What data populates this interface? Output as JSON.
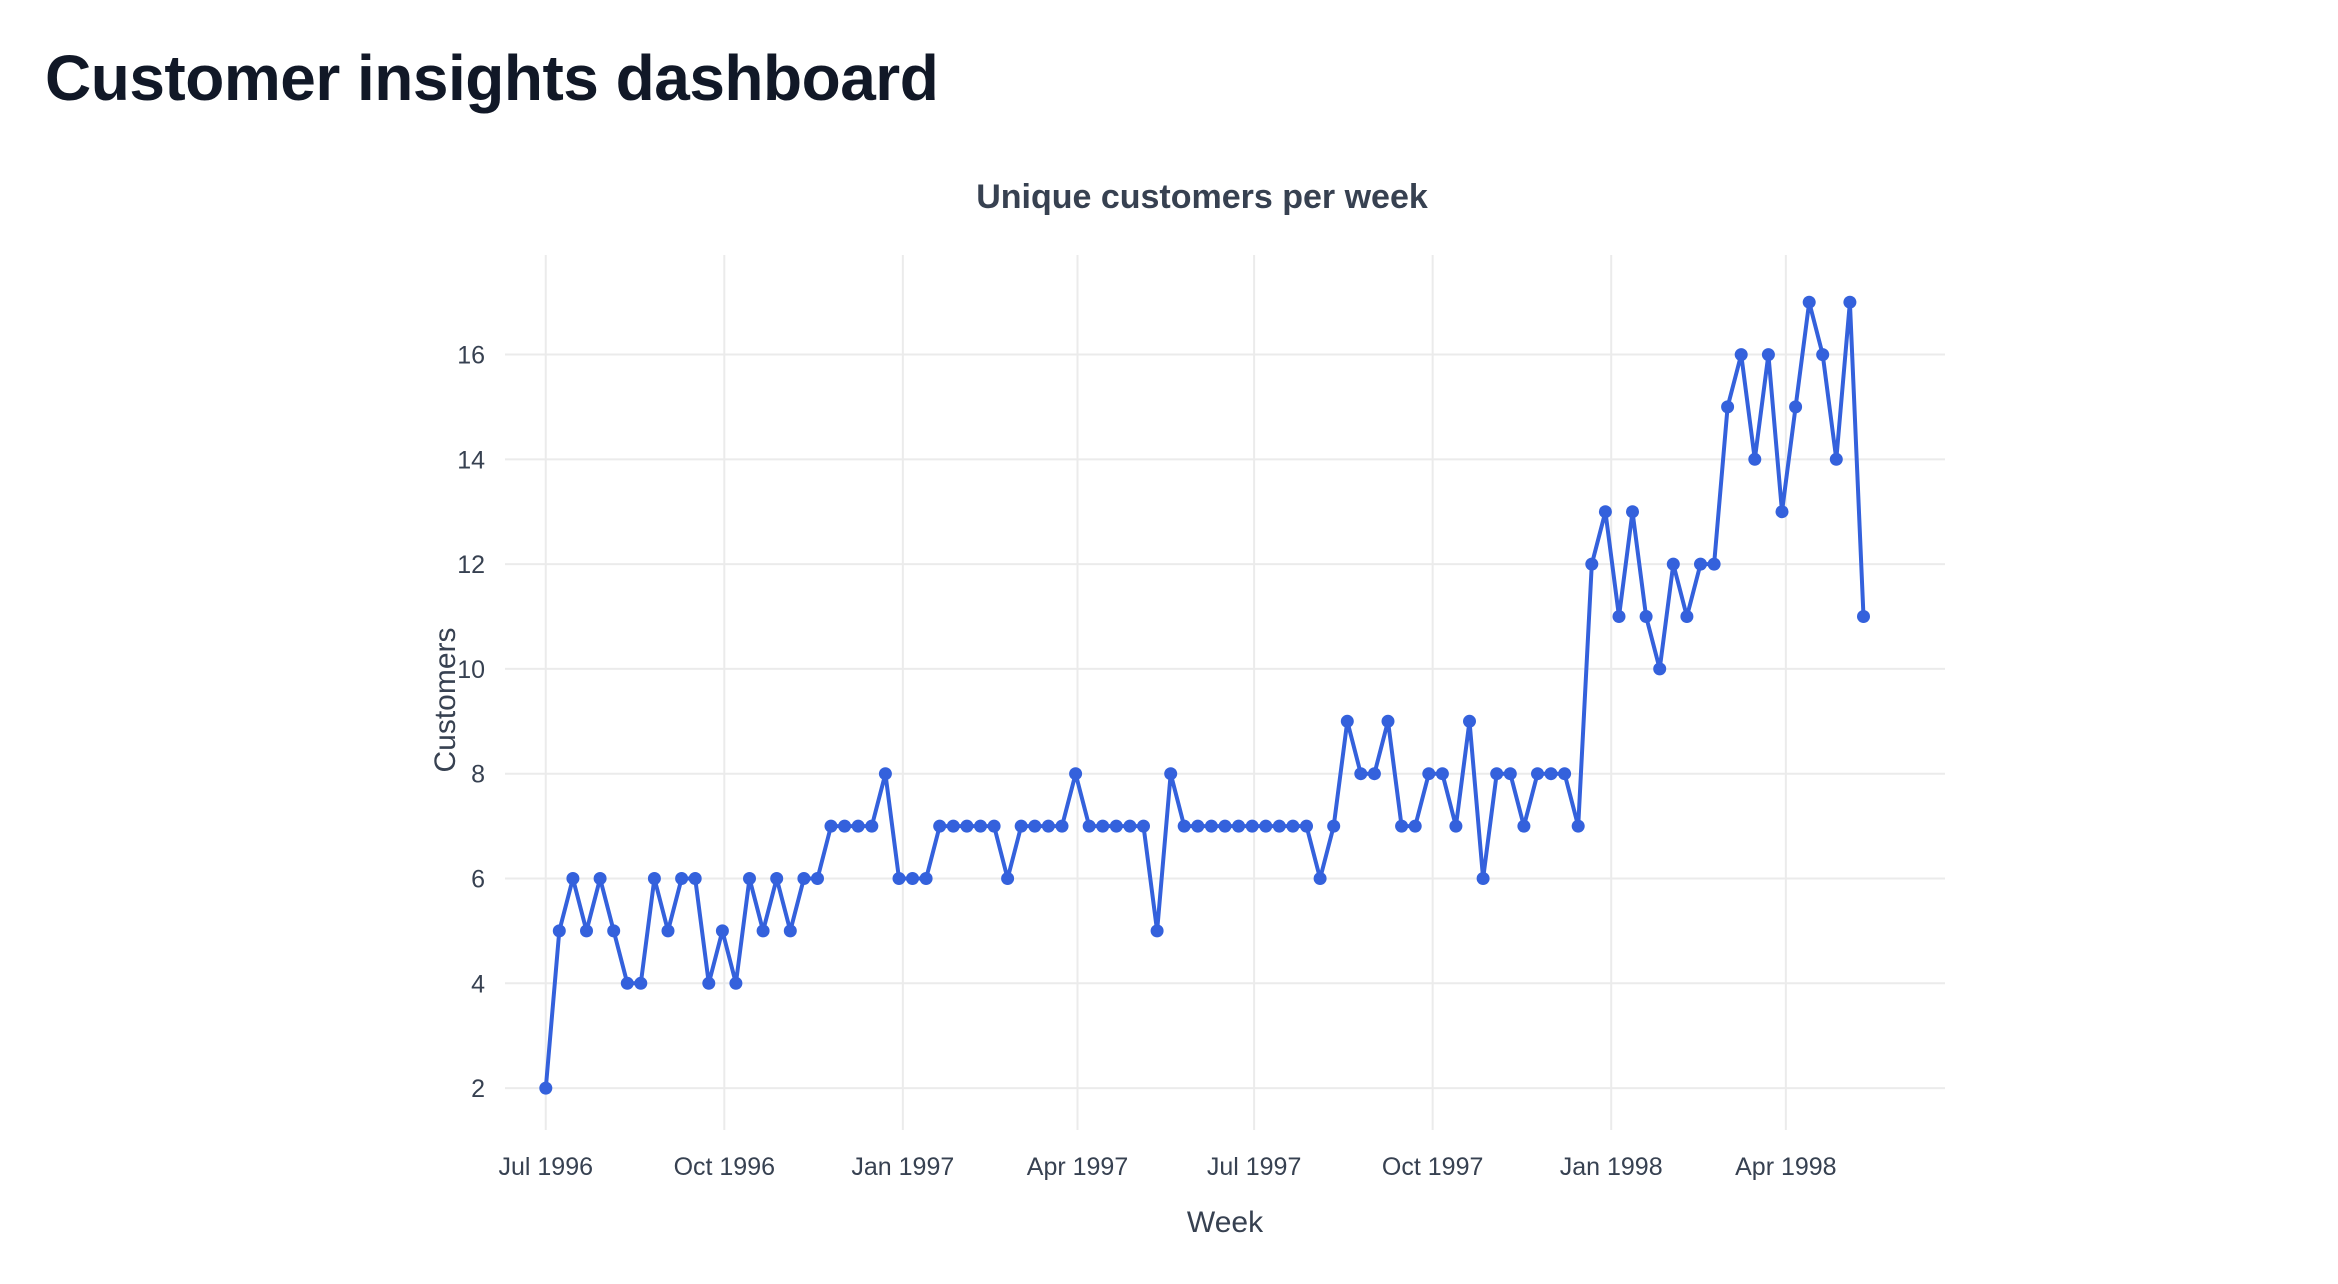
{
  "page": {
    "title": "Customer insights dashboard"
  },
  "chart_data": {
    "type": "line",
    "title": "Unique customers per week",
    "xlabel": "Week",
    "ylabel": "Customers",
    "color": "#3461dc",
    "xlim": [
      "1996-06-10",
      "1998-06-22"
    ],
    "ylim": [
      1.2,
      17.9
    ],
    "yticks": [
      2,
      4,
      6,
      8,
      10,
      12,
      14,
      16
    ],
    "xticks": [
      {
        "date": "1996-07-01",
        "label": "Jul 1996"
      },
      {
        "date": "1996-10-01",
        "label": "Oct 1996"
      },
      {
        "date": "1997-01-01",
        "label": "Jan 1997"
      },
      {
        "date": "1997-04-01",
        "label": "Apr 1997"
      },
      {
        "date": "1997-07-01",
        "label": "Jul 1997"
      },
      {
        "date": "1997-10-01",
        "label": "Oct 1997"
      },
      {
        "date": "1998-01-01",
        "label": "Jan 1998"
      },
      {
        "date": "1998-04-01",
        "label": "Apr 1998"
      }
    ],
    "grid": true,
    "legend": "none",
    "x_start": "1996-07-01",
    "x_step_days": 7,
    "values": [
      2,
      5,
      6,
      5,
      6,
      5,
      4,
      4,
      6,
      5,
      6,
      6,
      4,
      5,
      4,
      6,
      5,
      6,
      5,
      6,
      6,
      7,
      7,
      7,
      7,
      8,
      6,
      6,
      6,
      7,
      7,
      7,
      7,
      7,
      6,
      7,
      7,
      7,
      7,
      8,
      7,
      7,
      7,
      7,
      7,
      5,
      8,
      7,
      7,
      7,
      7,
      7,
      7,
      7,
      7,
      7,
      7,
      6,
      7,
      9,
      8,
      8,
      9,
      7,
      7,
      8,
      8,
      7,
      9,
      6,
      8,
      8,
      7,
      8,
      8,
      8,
      7,
      12,
      13,
      11,
      13,
      11,
      10,
      12,
      11,
      12,
      12,
      15,
      16,
      14,
      16,
      13,
      15,
      17,
      16,
      14,
      17,
      11
    ]
  }
}
